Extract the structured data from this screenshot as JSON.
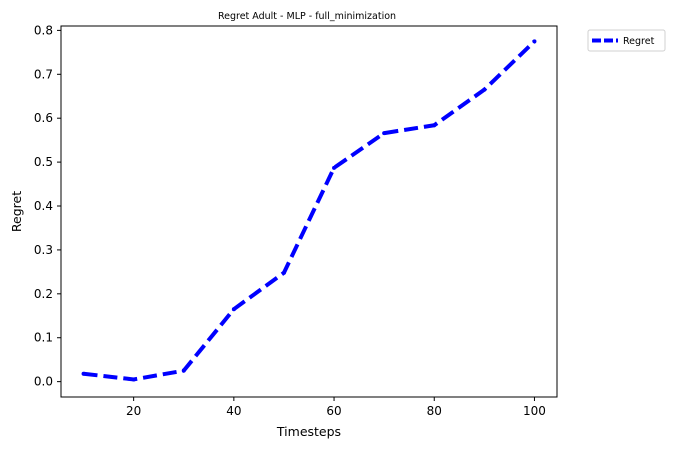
{
  "chart_data": {
    "type": "line",
    "title": "Regret Adult - MLP - full_minimization",
    "xlabel": "Timesteps",
    "ylabel": "Regret",
    "x": [
      10,
      20,
      30,
      40,
      50,
      60,
      70,
      80,
      90,
      100
    ],
    "series": [
      {
        "name": "Regret",
        "values": [
          0.018,
          0.005,
          0.025,
          0.165,
          0.248,
          0.487,
          0.566,
          0.584,
          0.665,
          0.775
        ],
        "color": "#0000ff",
        "style": "dashed"
      }
    ],
    "xlim": [
      5.5,
      104.5
    ],
    "ylim": [
      -0.035,
      0.81
    ],
    "xticks": [
      20,
      40,
      60,
      80,
      100
    ],
    "yticks": [
      0.0,
      0.1,
      0.2,
      0.3,
      0.4,
      0.5,
      0.6,
      0.7,
      0.8
    ],
    "xtick_labels": [
      "20",
      "40",
      "60",
      "80",
      "100"
    ],
    "ytick_labels": [
      "0.0",
      "0.1",
      "0.2",
      "0.3",
      "0.4",
      "0.5",
      "0.6",
      "0.7",
      "0.8"
    ],
    "grid": false,
    "legend_position": "outside-top-right"
  }
}
